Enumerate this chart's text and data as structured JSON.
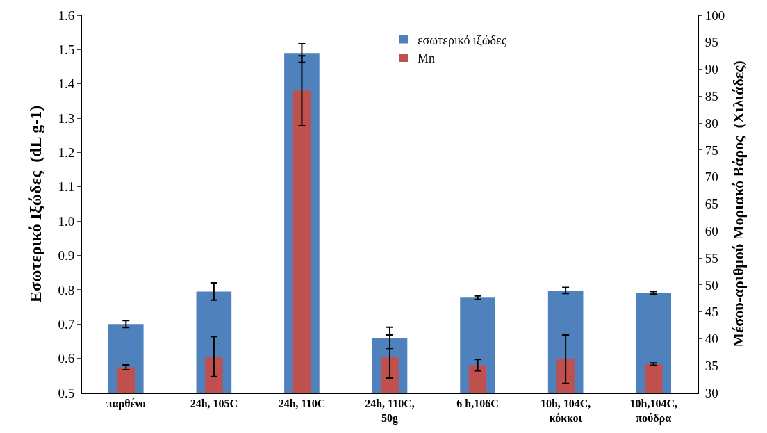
{
  "chart_data": {
    "type": "bar",
    "ylabel": "Εσωτερικό Ιξώδες  (dL g-1)",
    "y2label": "Μέσου-αριθμού Μοριακό Βάρος  (Χιλιάδες)",
    "categories": [
      "παρθένο",
      "24h, 105C",
      "24h, 110C",
      "24h, 110C,\n50g",
      "6 h,106C",
      "10h, 104C,\nκόκκοι",
      "10h,104C,\nπούδρα"
    ],
    "series": [
      {
        "name": "εσωτερικό ιξώδες",
        "color": "#4f81bd",
        "values": [
          0.7,
          0.795,
          1.49,
          0.66,
          0.777,
          0.798,
          0.791
        ],
        "errors": [
          0.01,
          0.025,
          0.027,
          0.031,
          0.005,
          0.009,
          0.004
        ]
      },
      {
        "name": "Mn",
        "color": "#c0504d",
        "axis": "y2",
        "values": [
          34.7,
          36.7,
          86,
          36.7,
          35.1,
          36.2,
          35.3
        ],
        "errors": [
          0.45,
          3.7,
          6.5,
          4,
          1.05,
          4.5,
          0.2
        ]
      }
    ],
    "ylim": [
      0.5,
      1.6
    ],
    "yticks": [
      {
        "value": 0.5,
        "label": "0.5"
      },
      {
        "value": 0.6,
        "label": "0.6"
      },
      {
        "value": 0.7,
        "label": "0.7"
      },
      {
        "value": 0.8,
        "label": "0.8"
      },
      {
        "value": 0.9,
        "label": "0.9"
      },
      {
        "value": 1.0,
        "label": "1.0"
      },
      {
        "value": 1.1,
        "label": "1.1"
      },
      {
        "value": 1.2,
        "label": "1.2"
      },
      {
        "value": 1.3,
        "label": "1.3"
      },
      {
        "value": 1.4,
        "label": "1.4"
      },
      {
        "value": 1.5,
        "label": "1.5"
      },
      {
        "value": 1.6,
        "label": "1.6"
      }
    ],
    "y2lim": [
      30,
      100
    ],
    "y2ticks": [
      30,
      35,
      40,
      45,
      50,
      55,
      60,
      65,
      70,
      75,
      80,
      85,
      90,
      95,
      100
    ],
    "grid": false,
    "legend": "top"
  }
}
